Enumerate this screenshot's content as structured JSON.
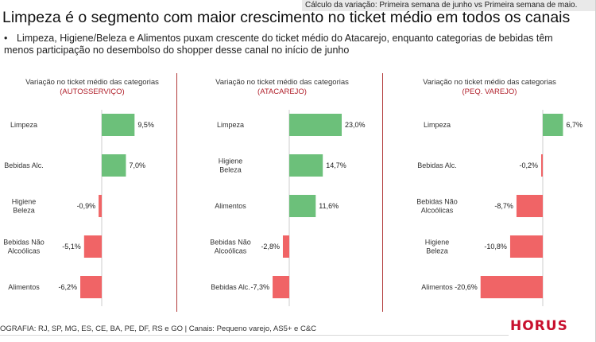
{
  "note": "Cálculo da variação: Primeira semana de junho vs Primeira semana de maio.",
  "title": "Limpeza é o segmento com maior crescimento no ticket médio em todos os canais",
  "subtitle": "Limpeza, Higiene/Beleza e Alimentos puxam crescente do ticket médio do Atacarejo, enquanto categorias de bebidas têm menos participação no desembolso do shopper desse canal no início de junho",
  "footer": "OGRAFIA: RJ, SP, MG, ES, CE, BA, PE, DF, RS e GO | Canais: Pequeno varejo, AS5+ e C&C",
  "logo": "HORUS",
  "colors": {
    "positive": "#6cc07a",
    "negative": "#f06466",
    "accent": "#b01f2a",
    "divider": "#b23a3a"
  },
  "chart_data": [
    {
      "type": "bar",
      "orientation": "horizontal",
      "title_prefix": "Variação no ticket médio das categorias",
      "title_accent": "(AUTOSSERVIÇO)",
      "categories": [
        "Limpeza",
        "Bebidas Alc.",
        "Higiene Beleza",
        "Bebidas Não Alcoólicas",
        "Alimentos"
      ],
      "values": [
        9.5,
        7.0,
        -0.9,
        -5.1,
        -6.2
      ],
      "value_labels": [
        "9,5%",
        "7,0%",
        "-0,9%",
        "-5,1%",
        "-6,2%"
      ]
    },
    {
      "type": "bar",
      "orientation": "horizontal",
      "title_prefix": "Variação no ticket médio das categorias",
      "title_accent": "(ATACAREJO)",
      "categories": [
        "Limpeza",
        "Higiene Beleza",
        "Alimentos",
        "Bebidas Não Alcoólicas",
        "Bebidas Alc."
      ],
      "values": [
        23.0,
        14.7,
        11.6,
        -2.8,
        -7.3
      ],
      "value_labels": [
        "23,0%",
        "14,7%",
        "11,6%",
        "-2,8%",
        "-7,3%"
      ]
    },
    {
      "type": "bar",
      "orientation": "horizontal",
      "title_prefix": "Variação no ticket médio das categorias",
      "title_accent": "(PEQ. VAREJO)",
      "categories": [
        "Limpeza",
        "Bebidas Alc.",
        "Bebidas Não Alcoólicas",
        "Higiene Beleza",
        "Alimentos"
      ],
      "values": [
        6.7,
        -0.2,
        -8.7,
        -10.8,
        -20.6
      ],
      "value_labels": [
        "6,7%",
        "-0,2%",
        "-8,7%",
        "-10,8%",
        "-20,6%"
      ]
    }
  ]
}
